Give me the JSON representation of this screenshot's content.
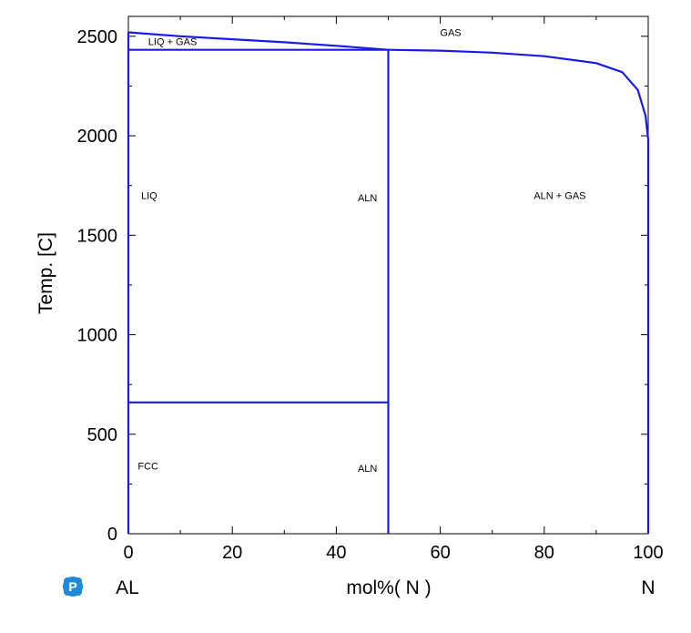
{
  "chart_data": {
    "type": "line",
    "xlabel": "mol%( N )",
    "ylabel": "Temp. [C]",
    "xlim": [
      0,
      100
    ],
    "ylim": [
      0,
      2600
    ],
    "x_ticks": [
      0,
      20,
      40,
      60,
      80,
      100
    ],
    "y_ticks": [
      0,
      500,
      1000,
      1500,
      2000,
      2500
    ],
    "x_end_labels": {
      "left": "AL",
      "right": "N"
    },
    "line_color": "#1a1ae6",
    "series": [
      {
        "values": [
          [
            0,
            2520
          ],
          [
            10,
            2500
          ],
          [
            20,
            2485
          ],
          [
            30,
            2470
          ],
          [
            40,
            2452
          ],
          [
            50,
            2432
          ]
        ]
      },
      {
        "values": [
          [
            50,
            2432
          ],
          [
            60,
            2428
          ],
          [
            70,
            2418
          ],
          [
            80,
            2400
          ],
          [
            90,
            2365
          ],
          [
            95,
            2320
          ],
          [
            98,
            2230
          ],
          [
            99.5,
            2100
          ],
          [
            100,
            1980
          ],
          [
            100,
            0
          ]
        ]
      },
      {
        "values": [
          [
            0,
            2432
          ],
          [
            50,
            2432
          ]
        ]
      },
      {
        "values": [
          [
            50,
            0
          ],
          [
            50,
            2432
          ]
        ]
      },
      {
        "values": [
          [
            0,
            660
          ],
          [
            50,
            660
          ]
        ]
      },
      {
        "values": [
          [
            0,
            0
          ],
          [
            0,
            2520
          ]
        ]
      }
    ],
    "annotations": [
      {
        "text": "GAS",
        "x": 62,
        "y": 2520
      },
      {
        "text": "LIQ + GAS",
        "x": 8.5,
        "y": 2475
      },
      {
        "text": "LIQ",
        "x": 4,
        "y": 1700
      },
      {
        "text": "ALN",
        "x": 46,
        "y": 1690
      },
      {
        "text": "ALN + GAS",
        "x": 83,
        "y": 1700
      },
      {
        "text": "FCC",
        "x": 3.8,
        "y": 340
      },
      {
        "text": "ALN",
        "x": 46,
        "y": 330
      }
    ]
  }
}
